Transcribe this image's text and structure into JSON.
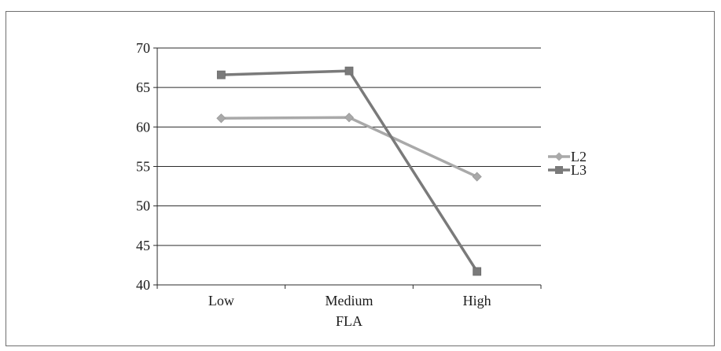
{
  "chart_data": {
    "type": "line",
    "title": "",
    "xlabel": "FLA",
    "ylabel": "",
    "categories": [
      "Low",
      "Medium",
      "High"
    ],
    "ylim": [
      40,
      70
    ],
    "yticks": [
      40,
      45,
      50,
      55,
      60,
      65,
      70
    ],
    "grid": "horizontal",
    "legend_position": "right",
    "series": [
      {
        "name": "L2",
        "values": [
          61.1,
          61.2,
          53.7
        ],
        "color": "#a9a9a9",
        "marker": "diamond"
      },
      {
        "name": "L3",
        "values": [
          66.6,
          67.1,
          41.7
        ],
        "color": "#7a7a7a",
        "marker": "square"
      }
    ]
  }
}
